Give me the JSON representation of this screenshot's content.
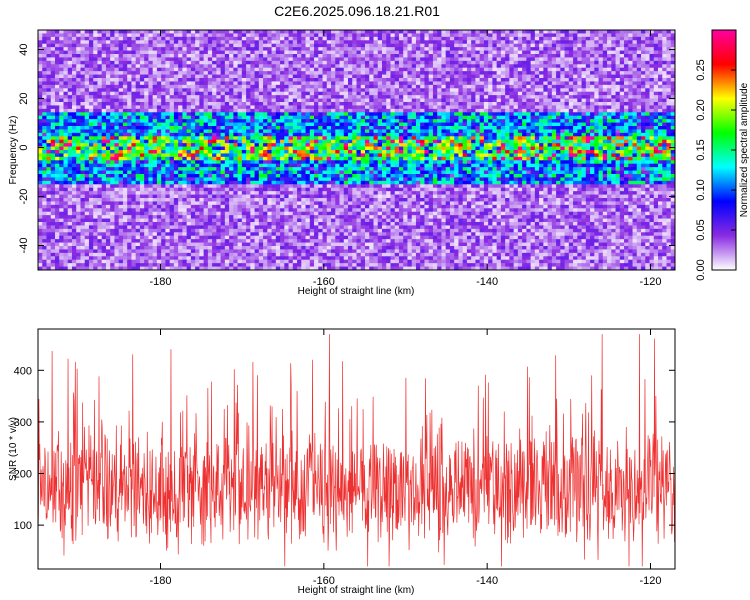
{
  "title": "C2E6.2025.096.18.21.R01",
  "chart_data": [
    {
      "type": "heatmap",
      "xlabel": "Height of straight line (km)",
      "ylabel": "Frequency (Hz)",
      "xlim": [
        -195,
        -117
      ],
      "ylim": [
        -50,
        48
      ],
      "xticks": [
        -180,
        -160,
        -140,
        -120
      ],
      "yticks": [
        -40,
        -20,
        0,
        20,
        40
      ],
      "colorbar": {
        "label": "Normalized spectral amplitude",
        "range": [
          0.0,
          0.3
        ],
        "ticks": [
          "0.00",
          "0.05",
          "0.10",
          "0.15",
          "0.20",
          "0.25"
        ],
        "colors": [
          "#ffffff",
          "#8a2be2",
          "#0000ff",
          "#00ffff",
          "#00ff00",
          "#ffff00",
          "#ff0000",
          "#ff00a0"
        ]
      },
      "signal_band_hz": [
        -15,
        15
      ],
      "peak_band_hz": [
        -5,
        5
      ],
      "background_level": 0.03,
      "band_level": 0.08,
      "peak_level": 0.27
    },
    {
      "type": "line",
      "xlabel": "Height of straight line (km)",
      "ylabel": "SNR (10 * v/v)",
      "xlim": [
        -195,
        -117
      ],
      "ylim": [
        15,
        480
      ],
      "xticks": [
        -180,
        -160,
        -140,
        -120
      ],
      "yticks": [
        100,
        200,
        300,
        400
      ],
      "series": [
        {
          "color": "#ee3030",
          "mean": 170,
          "min": 20,
          "max": 470
        }
      ]
    }
  ]
}
